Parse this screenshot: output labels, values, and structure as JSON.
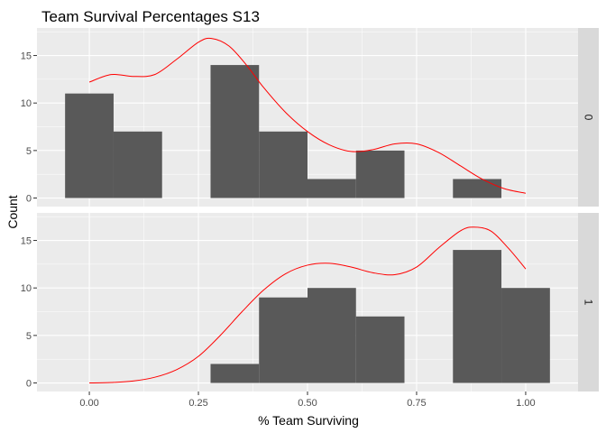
{
  "chart_data": {
    "type": "bar",
    "title": "Team Survival Percentages S13",
    "xlabel": "% Team Surviving",
    "ylabel": "Count",
    "xlim": [
      -0.12,
      1.12
    ],
    "ylim": [
      -0.9,
      17.9
    ],
    "x_ticks": [
      0.0,
      0.25,
      0.5,
      0.75,
      1.0
    ],
    "x_tick_labels": [
      "0.00",
      "0.25",
      "0.50",
      "0.75",
      "1.00"
    ],
    "y_ticks": [
      0,
      5,
      10,
      15
    ],
    "y_tick_labels": [
      "0",
      "5",
      "10",
      "15"
    ],
    "grid": true,
    "colors": {
      "panel_background": "#ebebeb",
      "grid_major": "#ffffff",
      "strip_background": "#d9d9d9",
      "bar_fill": "#595959",
      "density_line": "#ff0000"
    },
    "bin_width": 0.1111,
    "panels": [
      {
        "strip_label": "0",
        "bins": [
          {
            "x_start": -0.0556,
            "x_end": 0.0556,
            "count": 11
          },
          {
            "x_start": 0.0556,
            "x_end": 0.1667,
            "count": 7
          },
          {
            "x_start": 0.2778,
            "x_end": 0.3889,
            "count": 14
          },
          {
            "x_start": 0.3889,
            "x_end": 0.5,
            "count": 7
          },
          {
            "x_start": 0.5,
            "x_end": 0.6111,
            "count": 2
          },
          {
            "x_start": 0.6111,
            "x_end": 0.7222,
            "count": 5
          },
          {
            "x_start": 0.8333,
            "x_end": 0.9444,
            "count": 2
          }
        ],
        "density_curve": [
          [
            0.0,
            12.2
          ],
          [
            0.05,
            13.0
          ],
          [
            0.1,
            12.8
          ],
          [
            0.15,
            13.0
          ],
          [
            0.2,
            14.6
          ],
          [
            0.25,
            16.4
          ],
          [
            0.28,
            16.8
          ],
          [
            0.32,
            16.0
          ],
          [
            0.36,
            14.0
          ],
          [
            0.4,
            11.6
          ],
          [
            0.45,
            9.0
          ],
          [
            0.5,
            7.0
          ],
          [
            0.55,
            5.6
          ],
          [
            0.6,
            4.9
          ],
          [
            0.65,
            5.1
          ],
          [
            0.7,
            5.7
          ],
          [
            0.75,
            5.7
          ],
          [
            0.8,
            4.8
          ],
          [
            0.85,
            3.4
          ],
          [
            0.9,
            2.0
          ],
          [
            0.95,
            1.0
          ],
          [
            1.0,
            0.5
          ]
        ]
      },
      {
        "strip_label": "1",
        "bins": [
          {
            "x_start": 0.2778,
            "x_end": 0.3889,
            "count": 2
          },
          {
            "x_start": 0.3889,
            "x_end": 0.5,
            "count": 9
          },
          {
            "x_start": 0.5,
            "x_end": 0.6111,
            "count": 10
          },
          {
            "x_start": 0.6111,
            "x_end": 0.7222,
            "count": 7
          },
          {
            "x_start": 0.8333,
            "x_end": 0.9444,
            "count": 14
          },
          {
            "x_start": 0.9444,
            "x_end": 1.0556,
            "count": 10
          }
        ],
        "density_curve": [
          [
            0.0,
            0.0
          ],
          [
            0.05,
            0.05
          ],
          [
            0.1,
            0.2
          ],
          [
            0.15,
            0.6
          ],
          [
            0.2,
            1.4
          ],
          [
            0.25,
            2.8
          ],
          [
            0.3,
            5.0
          ],
          [
            0.35,
            7.5
          ],
          [
            0.4,
            9.8
          ],
          [
            0.45,
            11.5
          ],
          [
            0.5,
            12.4
          ],
          [
            0.55,
            12.6
          ],
          [
            0.6,
            12.2
          ],
          [
            0.65,
            11.6
          ],
          [
            0.7,
            11.4
          ],
          [
            0.75,
            12.2
          ],
          [
            0.8,
            14.2
          ],
          [
            0.85,
            16.0
          ],
          [
            0.88,
            16.4
          ],
          [
            0.92,
            16.0
          ],
          [
            0.96,
            14.2
          ],
          [
            1.0,
            12.0
          ]
        ]
      }
    ]
  }
}
